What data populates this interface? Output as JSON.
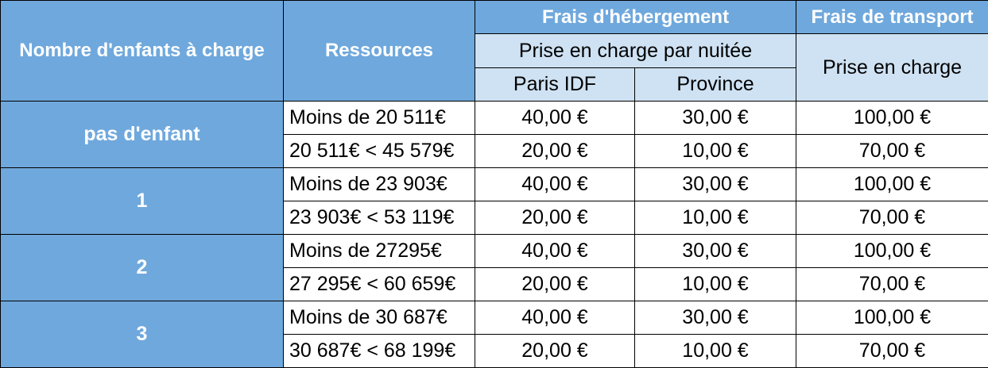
{
  "header": {
    "enfants_col": "Nombre d'enfants à charge",
    "ressources_col": "Ressources",
    "hebergement_group": "Frais d'hébergement",
    "transport_group": "Frais de transport",
    "hebergement_sub": "Prise en charge par nuitée",
    "transport_sub": "Prise en charge",
    "paris": "Paris IDF",
    "province": "Province"
  },
  "groups": [
    {
      "label": "pas d'enfant",
      "rows": [
        {
          "ressources": "Moins de 20 511€",
          "paris": "40,00 €",
          "province": "30,00 €",
          "transport": "100,00 €"
        },
        {
          "ressources": "20 511€ < 45 579€",
          "paris": "20,00 €",
          "province": "10,00 €",
          "transport": "70,00 €"
        }
      ]
    },
    {
      "label": "1",
      "rows": [
        {
          "ressources": "Moins de 23 903€",
          "paris": "40,00 €",
          "province": "30,00 €",
          "transport": "100,00 €"
        },
        {
          "ressources": "23 903€ < 53 119€",
          "paris": "20,00 €",
          "province": "10,00 €",
          "transport": "70,00 €"
        }
      ]
    },
    {
      "label": "2",
      "rows": [
        {
          "ressources": "Moins de 27295€",
          "paris": "40,00 €",
          "province": "30,00 €",
          "transport": "100,00 €"
        },
        {
          "ressources": "27 295€ < 60 659€",
          "paris": "20,00 €",
          "province": "10,00 €",
          "transport": "70,00 €"
        }
      ]
    },
    {
      "label": "3",
      "rows": [
        {
          "ressources": "Moins de 30 687€",
          "paris": "40,00 €",
          "province": "30,00 €",
          "transport": "100,00 €"
        },
        {
          "ressources": "30 687€ < 68 199€",
          "paris": "20,00 €",
          "province": "10,00 €",
          "transport": "70,00 €"
        }
      ]
    }
  ],
  "colors": {
    "header_dark": "#6fa8dc",
    "header_light": "#cfe2f3",
    "border": "#000000"
  }
}
